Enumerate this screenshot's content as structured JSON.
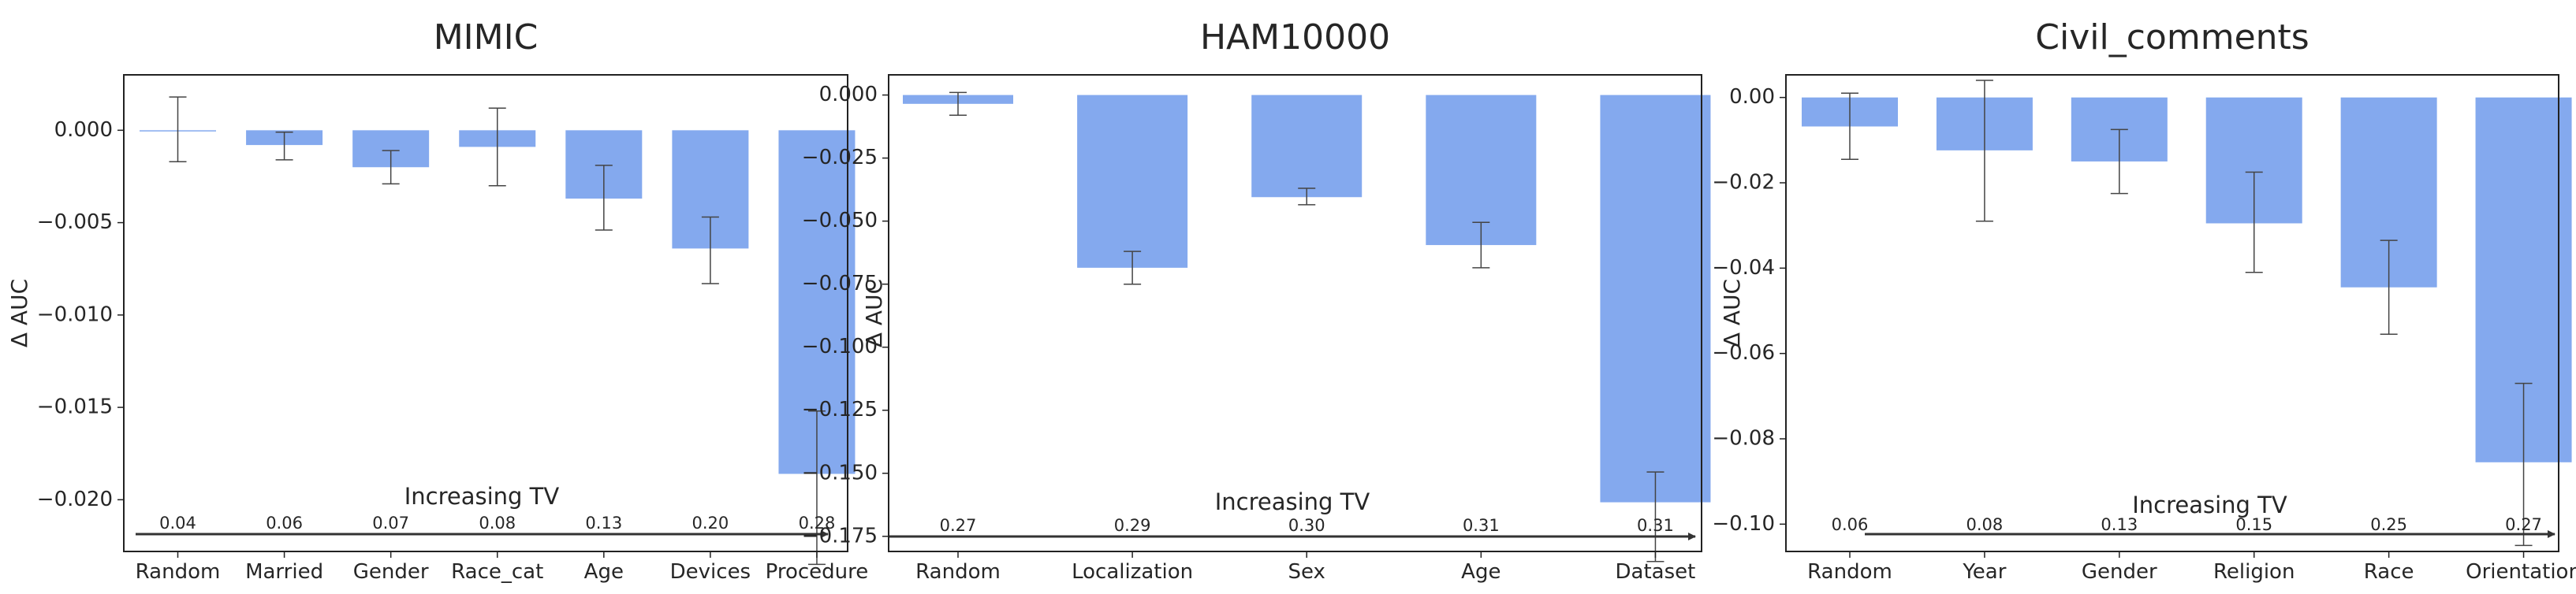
{
  "chart_data": [
    {
      "type": "bar",
      "title": "MIMIC",
      "ylabel": "Δ AUC",
      "xlabel": "",
      "ylim": [
        -0.0228,
        0.003
      ],
      "yticks": [
        0.0,
        -0.005,
        -0.01,
        -0.015,
        -0.02
      ],
      "ytick_labels": [
        "0.000",
        "−0.005",
        "−0.010",
        "−0.015",
        "−0.020"
      ],
      "categories": [
        "Random",
        "Married",
        "Gender",
        "Race_cat",
        "Age",
        "Devices",
        "Procedure"
      ],
      "values": [
        0.0,
        -0.0008,
        -0.002,
        -0.0009,
        -0.0037,
        -0.0064,
        -0.0186
      ],
      "error_low": [
        -0.0017,
        -0.0016,
        -0.0029,
        -0.003,
        -0.0054,
        -0.0083,
        -0.0235
      ],
      "error_high": [
        0.0018,
        -0.0001,
        -0.0011,
        0.0012,
        -0.0019,
        -0.0047,
        -0.0152
      ],
      "tv_values": [
        "0.04",
        "0.06",
        "0.07",
        "0.08",
        "0.13",
        "0.20",
        "0.28"
      ],
      "arrow_label": "Increasing TV",
      "bar_color": "#84a9ee"
    },
    {
      "type": "bar",
      "title": "HAM10000",
      "ylabel": "Δ AUC",
      "xlabel": "",
      "ylim": [
        -0.181,
        0.008
      ],
      "yticks": [
        0.0,
        -0.025,
        -0.05,
        -0.075,
        -0.1,
        -0.125,
        -0.15,
        -0.175
      ],
      "ytick_labels": [
        "0.000",
        "−0.025",
        "−0.050",
        "−0.075",
        "−0.100",
        "−0.125",
        "−0.150",
        "−0.175"
      ],
      "categories": [
        "Random",
        "Localization",
        "Sex",
        "Age",
        "Dataset"
      ],
      "values": [
        -0.0035,
        -0.0685,
        -0.0405,
        -0.0595,
        -0.1615
      ],
      "error_low": [
        -0.008,
        -0.075,
        -0.0435,
        -0.0685,
        -0.185
      ],
      "error_high": [
        0.001,
        -0.062,
        -0.037,
        -0.0505,
        -0.1495
      ],
      "tv_values": [
        "0.27",
        "0.29",
        "0.30",
        "0.31",
        "0.31"
      ],
      "arrow_label": "Increasing TV",
      "bar_color": "#84a9ee"
    },
    {
      "type": "bar",
      "title": "Civil_comments",
      "ylabel": "Δ AUC",
      "xlabel": "",
      "ylim": [
        -0.1064,
        0.0053
      ],
      "yticks": [
        0.0,
        -0.02,
        -0.04,
        -0.06,
        -0.08,
        -0.1
      ],
      "ytick_labels": [
        "0.00",
        "−0.02",
        "−0.04",
        "−0.06",
        "−0.08",
        "−0.10"
      ],
      "categories": [
        "Random",
        "Year",
        "Gender",
        "Religion",
        "Race",
        "Orientation"
      ],
      "values": [
        -0.0068,
        -0.0124,
        -0.015,
        -0.0295,
        -0.0445,
        -0.0855
      ],
      "error_low": [
        -0.0145,
        -0.029,
        -0.0225,
        -0.041,
        -0.0555,
        -0.105
      ],
      "error_high": [
        0.001,
        0.004,
        -0.0075,
        -0.0175,
        -0.0335,
        -0.067
      ],
      "tv_values": [
        "0.06",
        "0.08",
        "0.13",
        "0.15",
        "0.25",
        "0.27"
      ],
      "arrow_label": "Increasing TV",
      "bar_color": "#84a9ee"
    }
  ]
}
